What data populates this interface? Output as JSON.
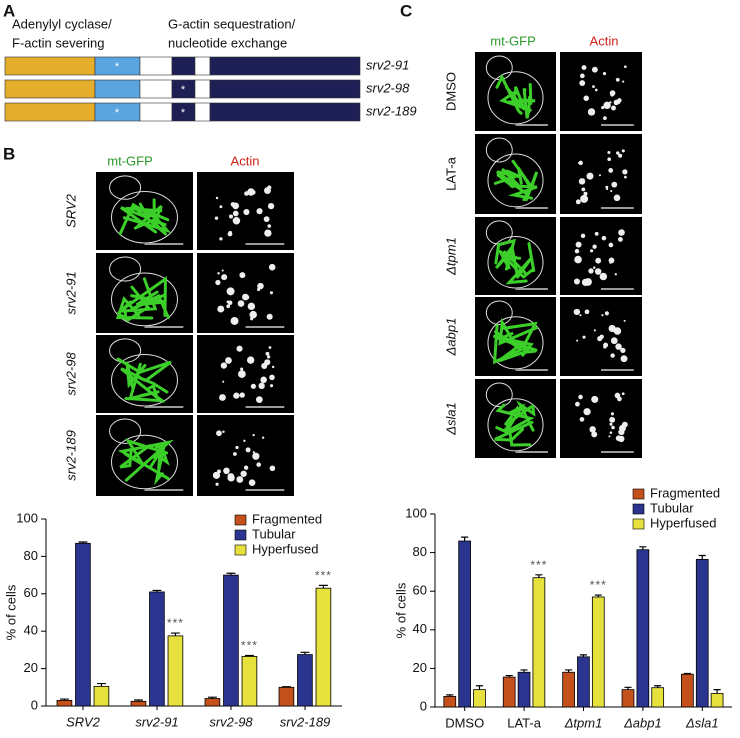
{
  "panel_a": {
    "label": "A",
    "domain_labels": [
      [
        "Adenylyl cyclase/",
        "F-actin severing"
      ],
      [
        "G-actin sequestration/",
        "nucleotide exchange"
      ]
    ],
    "alleles": [
      "srv2-91",
      "srv2-98",
      "srv2-189"
    ],
    "marker": "*"
  },
  "panel_b": {
    "label": "B",
    "columns": [
      "mt-GFP",
      "Actin"
    ],
    "rows": [
      "SRV2",
      "srv2-91",
      "srv2-98",
      "srv2-189"
    ]
  },
  "panel_c": {
    "label": "C",
    "columns": [
      "mt-GFP",
      "Actin"
    ],
    "rows": [
      "DMSO",
      "LAT-a",
      "Δtpm1",
      "Δabp1",
      "Δsla1"
    ]
  },
  "chart_data": [
    {
      "type": "bar",
      "y_label": "% of cells",
      "categories": [
        "SRV2",
        "srv2-91",
        "srv2-98",
        "srv2-189"
      ],
      "ylim": [
        0,
        100
      ],
      "yticks": [
        0,
        20,
        40,
        60,
        80,
        100
      ],
      "series": [
        {
          "name": "Fragmented",
          "color": "#c4501b",
          "values": [
            3,
            2.5,
            4,
            10
          ],
          "errors": [
            0.7,
            0.7,
            0.7,
            0.3
          ]
        },
        {
          "name": "Tubular",
          "color": "#2b3590",
          "values": [
            87,
            61,
            70,
            27.5
          ],
          "errors": [
            0.7,
            0.8,
            1,
            1.2
          ]
        },
        {
          "name": "Hyperfused",
          "color": "#e6e13c",
          "values": [
            10.5,
            37.5,
            26.5,
            63
          ],
          "errors": [
            1.5,
            1.5,
            0.5,
            1.5
          ],
          "significance": [
            null,
            "***",
            "***",
            "***"
          ]
        }
      ]
    },
    {
      "type": "bar",
      "y_label": "% of cells",
      "categories": [
        "DMSO",
        "LAT-a",
        "Δtpm1",
        "Δabp1",
        "Δsla1"
      ],
      "ylim": [
        0,
        100
      ],
      "yticks": [
        0,
        20,
        40,
        60,
        80,
        100
      ],
      "series": [
        {
          "name": "Fragmented",
          "color": "#c4501b",
          "values": [
            5.5,
            15.5,
            18,
            9,
            17
          ],
          "errors": [
            0.8,
            0.8,
            1.2,
            1.2,
            0.4
          ]
        },
        {
          "name": "Tubular",
          "color": "#2b3590",
          "values": [
            86,
            18,
            26,
            81.5,
            76.5
          ],
          "errors": [
            2,
            1.2,
            1,
            1.5,
            2
          ]
        },
        {
          "name": "Hyperfused",
          "color": "#e6e13c",
          "values": [
            9,
            67,
            57,
            10,
            7
          ],
          "errors": [
            2,
            1.5,
            1,
            1,
            2
          ],
          "significance": [
            null,
            "***",
            "***",
            null,
            null
          ]
        }
      ]
    }
  ]
}
